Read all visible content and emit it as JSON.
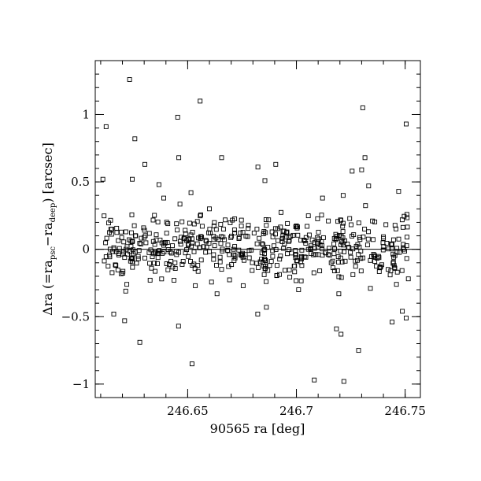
{
  "chart_data": {
    "type": "scatter",
    "title": "",
    "xlabel": "90565 ra [deg]",
    "ylabel": "Δra (=ra_psc−ra_deep) [arcsec]",
    "ylabel_parts": {
      "pre": "Δra (=ra",
      "sub1": "psc",
      "mid": "−ra",
      "sub2": "deep",
      "post": ") [arcsec]"
    },
    "xlim": [
      246.6075,
      246.757
    ],
    "ylim": [
      -1.1,
      1.4
    ],
    "x_ticks": [
      {
        "value": 246.65,
        "label": "246.65"
      },
      {
        "value": 246.7,
        "label": "246.7"
      },
      {
        "value": 246.75,
        "label": "246.75"
      }
    ],
    "y_ticks": [
      {
        "value": -1,
        "label": "−1"
      },
      {
        "value": -0.5,
        "label": "−0.5"
      },
      {
        "value": 0,
        "label": "0"
      },
      {
        "value": 0.5,
        "label": "0.5"
      },
      {
        "value": 1,
        "label": "1"
      }
    ],
    "x_minor_step": 0.01,
    "y_minor_step": 0.1,
    "reference_line_y": 0,
    "grid": false,
    "legend": "none",
    "marker": "open-square",
    "outliers": [
      [
        246.6233,
        1.26
      ],
      [
        246.6557,
        1.1
      ],
      [
        246.7305,
        1.05
      ],
      [
        246.6125,
        0.91
      ],
      [
        246.6454,
        0.98
      ],
      [
        246.7505,
        0.93
      ],
      [
        246.6257,
        0.82
      ],
      [
        246.6459,
        0.68
      ],
      [
        246.6656,
        0.68
      ],
      [
        246.7315,
        0.68
      ],
      [
        246.6303,
        0.63
      ],
      [
        246.6905,
        0.63
      ],
      [
        246.6823,
        0.61
      ],
      [
        246.7256,
        0.58
      ],
      [
        246.73,
        0.59
      ],
      [
        246.611,
        0.52
      ],
      [
        246.6245,
        0.52
      ],
      [
        246.6855,
        0.51
      ],
      [
        246.6368,
        0.48
      ],
      [
        246.7332,
        0.47
      ],
      [
        246.6515,
        0.42
      ],
      [
        246.66,
        0.3
      ],
      [
        246.7215,
        0.4
      ],
      [
        246.652,
        -0.85
      ],
      [
        246.628,
        -0.69
      ],
      [
        246.621,
        -0.53
      ],
      [
        246.6458,
        -0.57
      ],
      [
        246.616,
        -0.48
      ],
      [
        246.622,
        -0.26
      ],
      [
        246.6215,
        -0.31
      ],
      [
        246.6822,
        -0.48
      ],
      [
        246.6862,
        -0.43
      ],
      [
        246.7107,
        -0.16
      ],
      [
        246.7184,
        -0.59
      ],
      [
        246.7205,
        -0.63
      ],
      [
        246.7082,
        -0.97
      ],
      [
        246.7218,
        -0.98
      ],
      [
        246.7286,
        -0.75
      ],
      [
        246.7487,
        -0.46
      ],
      [
        246.744,
        -0.54
      ],
      [
        246.7505,
        -0.51
      ],
      [
        246.6535,
        -0.27
      ],
      [
        246.6635,
        -0.33
      ],
      [
        246.6755,
        -0.27
      ],
      [
        246.701,
        -0.3
      ],
      [
        246.7195,
        -0.33
      ],
      [
        246.734,
        -0.29
      ],
      [
        246.746,
        -0.26
      ],
      [
        246.617,
        -0.12
      ],
      [
        246.638,
        -0.22
      ],
      [
        246.7025,
        -0.12
      ],
      [
        246.7175,
        -0.16
      ],
      [
        246.747,
        0.43
      ],
      [
        246.639,
        0.38
      ],
      [
        246.712,
        0.38
      ]
    ],
    "cluster": {
      "x_range": [
        246.6115,
        246.7515
      ],
      "y_center": 0.02,
      "y_spread": 0.11,
      "count": 520,
      "seed": 90565
    }
  }
}
